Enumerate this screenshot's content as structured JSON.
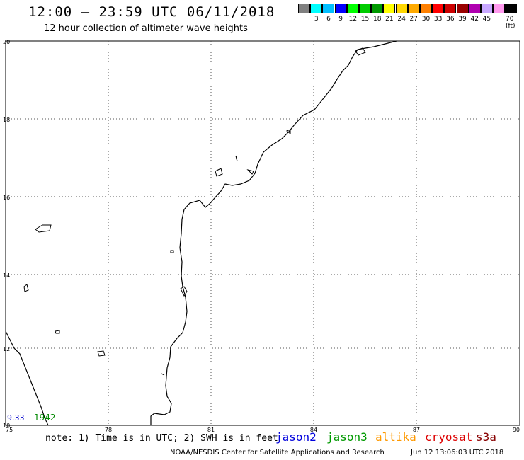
{
  "header": {
    "title": "12:00 — 23:59 UTC 06/11/2018",
    "subtitle": "12 hour collection of altimeter wave heights"
  },
  "legend": {
    "unit": "70 (ft)",
    "items": [
      {
        "label": "",
        "color": "#808080"
      },
      {
        "label": "3",
        "color": "#00ffff"
      },
      {
        "label": "6",
        "color": "#00bfff"
      },
      {
        "label": "9",
        "color": "#0000ff"
      },
      {
        "label": "12",
        "color": "#00ff00"
      },
      {
        "label": "15",
        "color": "#00cc00"
      },
      {
        "label": "18",
        "color": "#009900"
      },
      {
        "label": "21",
        "color": "#ffff00"
      },
      {
        "label": "24",
        "color": "#ffd700"
      },
      {
        "label": "27",
        "color": "#ffaa00"
      },
      {
        "label": "30",
        "color": "#ff8000"
      },
      {
        "label": "33",
        "color": "#ff0000"
      },
      {
        "label": "36",
        "color": "#cc0000"
      },
      {
        "label": "39",
        "color": "#990000"
      },
      {
        "label": "42",
        "color": "#b000b0"
      },
      {
        "label": "45",
        "color": "#c8a8ff"
      },
      {
        "label": "",
        "color": "#ff99ee"
      },
      {
        "label": "",
        "color": "#000000"
      }
    ]
  },
  "map": {
    "lon_ticks": [
      "75",
      "78",
      "81",
      "84",
      "87",
      "90"
    ],
    "lat_ticks": [
      "20",
      "18",
      "16",
      "14",
      "12",
      "10"
    ],
    "observations": [
      {
        "text": "9.33",
        "color": "#0000cc"
      },
      {
        "text": "1942",
        "color": "#008800"
      }
    ]
  },
  "footer": {
    "note": "note: 1) Time is in UTC; 2) SWH is in feet",
    "satellites": [
      {
        "name": "jason2",
        "color": "#0000dd"
      },
      {
        "name": "jason3",
        "color": "#009900"
      },
      {
        "name": "altika",
        "color": "#ff9900"
      },
      {
        "name": "cryosat",
        "color": "#dd0000"
      },
      {
        "name": "s3a",
        "color": "#880000"
      }
    ],
    "credit": "NOAA/NESDIS Center for Satellite Applications and Research",
    "timestamp": "Jun 12 13:06:03 UTC 2018"
  }
}
